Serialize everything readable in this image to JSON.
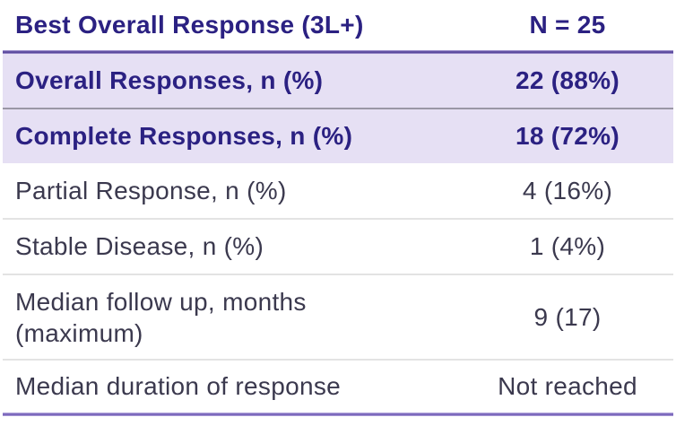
{
  "table": {
    "header": {
      "label": "Best Overall Response (3L+)",
      "value": "N = 25"
    },
    "rows": [
      {
        "label": "Overall Responses, n (%)",
        "value": "22 (88%)"
      },
      {
        "label": "Complete Responses, n (%)",
        "value": "18 (72%)"
      },
      {
        "label": "Partial Response, n (%)",
        "value": "4 (16%)"
      },
      {
        "label": "Stable Disease, n (%)",
        "value": "1 (4%)"
      },
      {
        "label": "Median follow up, months\n(maximum)",
        "value": "9 (17)"
      },
      {
        "label": "Median duration of response",
        "value": "Not reached"
      }
    ]
  },
  "colors": {
    "header_text": "#2B2182",
    "body_text": "#3B394E",
    "highlight_row_bg": "#E6E0F4",
    "rule_top": "#5B4A9E",
    "rule_bottom": "#7A66BB",
    "separator_gray": "#E3E3E3",
    "separator_dark": "#9A97A5"
  },
  "chart_data": {
    "type": "table",
    "title": "Best Overall Response (3L+)",
    "columns": [
      "Best Overall Response (3L+)",
      "N = 25"
    ],
    "rows": [
      [
        "Overall Responses, n (%)",
        "22 (88%)"
      ],
      [
        "Complete Responses, n (%)",
        "18 (72%)"
      ],
      [
        "Partial Response, n (%)",
        "4 (16%)"
      ],
      [
        "Stable Disease, n (%)",
        "1 (4%)"
      ],
      [
        "Median follow up, months (maximum)",
        "9 (17)"
      ],
      [
        "Median duration of response",
        "Not reached"
      ]
    ],
    "notes": {
      "n_total": 25,
      "overall_response_n": 22,
      "overall_response_pct": 88,
      "complete_response_n": 18,
      "complete_response_pct": 72,
      "partial_response_n": 4,
      "partial_response_pct": 16,
      "stable_disease_n": 1,
      "stable_disease_pct": 4,
      "median_follow_up_months": 9,
      "max_follow_up_months": 17
    }
  }
}
